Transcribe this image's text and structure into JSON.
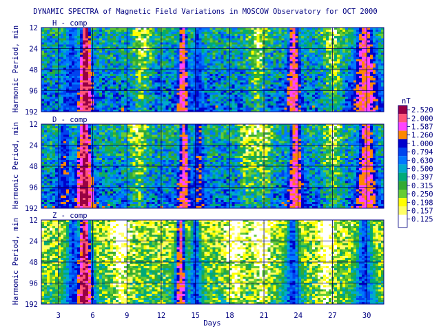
{
  "chart_data": {
    "type": "heatmap",
    "title": "DYNAMIC SPECTRA of Magnetic Field Variations in MOSCOW Observatory for OCT 2000",
    "xlabel": "Days",
    "ylabel": "Harmonic Period, min",
    "xlim": [
      1.5,
      31.5
    ],
    "x_ticks": [
      3,
      6,
      9,
      12,
      15,
      18,
      21,
      24,
      27,
      30
    ],
    "x_tick_labels": [
      "3",
      "6",
      "9",
      "12",
      "15",
      "18",
      "21",
      "24",
      "27",
      "30"
    ],
    "y_scale": "log2",
    "y_ticks": [
      12,
      24,
      48,
      96,
      192
    ],
    "y_tick_labels": [
      "12",
      "24",
      "48",
      "96",
      "192"
    ],
    "grid": true,
    "colorbar": {
      "unit": "nT",
      "levels": [
        0.125,
        0.157,
        0.198,
        0.25,
        0.315,
        0.397,
        0.5,
        0.63,
        0.794,
        1.0,
        1.26,
        1.587,
        2.0,
        2.52
      ],
      "labels": [
        "0.125",
        "0.157",
        "0.198",
        "0.250",
        "0.315",
        "0.397",
        "0.500",
        "0.630",
        "0.794",
        "1.000",
        "1.260",
        "1.587",
        "2.000",
        "2.520"
      ],
      "colors": [
        "#ffffff",
        "#ffff66",
        "#ffff00",
        "#66cc33",
        "#33aa33",
        "#00aa77",
        "#00aacc",
        "#0077ff",
        "#0044ee",
        "#0000cc",
        "#ff8800",
        "#ff44ff",
        "#ff5577",
        "#990044"
      ]
    },
    "panels": [
      {
        "label": "H - comp",
        "background_level": 5,
        "events": [
          {
            "day": 5.4,
            "width": 0.8,
            "level": 13
          },
          {
            "day": 13.9,
            "width": 0.7,
            "level": 11
          },
          {
            "day": 4.2,
            "width": 1.2,
            "level": 8
          },
          {
            "day": 23.6,
            "width": 0.9,
            "level": 11
          },
          {
            "day": 29.9,
            "width": 1.6,
            "level": 11
          },
          {
            "day": 15.2,
            "width": 0.9,
            "level": 8
          }
        ],
        "quiet_days": [
          10.3,
          20.5,
          27.0
        ]
      },
      {
        "label": "D - comp",
        "background_level": 5,
        "events": [
          {
            "day": 5.3,
            "width": 1.0,
            "level": 13
          },
          {
            "day": 14.0,
            "width": 0.8,
            "level": 11
          },
          {
            "day": 3.5,
            "width": 1.0,
            "level": 9
          },
          {
            "day": 23.8,
            "width": 1.0,
            "level": 11
          },
          {
            "day": 30.0,
            "width": 1.3,
            "level": 11
          },
          {
            "day": 15.3,
            "width": 0.9,
            "level": 9
          }
        ],
        "quiet_days": [
          10.0,
          19.6,
          21.0,
          27.0
        ]
      },
      {
        "label": "Z - comp",
        "background_level": 2,
        "events": [
          {
            "day": 5.3,
            "width": 0.8,
            "level": 13
          },
          {
            "day": 13.7,
            "width": 0.6,
            "level": 11
          },
          {
            "day": 4.3,
            "width": 0.9,
            "level": 8
          },
          {
            "day": 15.0,
            "width": 0.7,
            "level": 8
          },
          {
            "day": 23.5,
            "width": 0.8,
            "level": 8
          },
          {
            "day": 29.8,
            "width": 1.0,
            "level": 8
          }
        ],
        "quiet_days": [
          8.5,
          18.5,
          20.8,
          26.5
        ]
      }
    ]
  }
}
